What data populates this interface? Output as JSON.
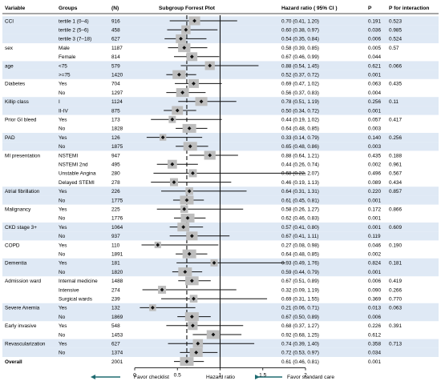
{
  "chart_data": {
    "type": "forest",
    "title": "Subgroup Forrest Plot",
    "columns": {
      "variable": "Variable",
      "groups": "Groups",
      "n": "(N)",
      "hr": "Hazard ratio ( 95% CI )",
      "p": "P",
      "p_interaction": "P for interaction"
    },
    "xlabel": "Hazard ratio",
    "xlim": [
      0,
      2
    ],
    "xticks": [
      "0",
      "0.5",
      "1",
      "1.5",
      "2"
    ],
    "tick_values": [
      0,
      0.5,
      1,
      1.5,
      2
    ],
    "reference_line": 1,
    "overall_line": 0.61,
    "favor_left": "Favor checklist",
    "favor_right": "Favor standard care",
    "rows": [
      {
        "variable": "CCI",
        "group": "tertile 1 (0–4)",
        "n": "916",
        "hr": 0.7,
        "lo": 0.41,
        "hi": 1.2,
        "hr_text": "0.70 (0.41, 1.20)",
        "p": "0.191",
        "p_int": "0.523",
        "band": true
      },
      {
        "variable": "",
        "group": "tertile 2 (5–6)",
        "n": "458",
        "hr": 0.6,
        "lo": 0.38,
        "hi": 0.97,
        "hr_text": "0.60 (0.38, 0.97)",
        "p": "0.036",
        "p_int": "0.985",
        "band": true
      },
      {
        "variable": "",
        "group": "tertile 3 (7–18)",
        "n": "627",
        "hr": 0.54,
        "lo": 0.35,
        "hi": 0.84,
        "hr_text": "0.54 (0.35, 0.84)",
        "p": "0.006",
        "p_int": "0.524",
        "band": true
      },
      {
        "variable": "sex",
        "group": "Male",
        "n": "1187",
        "hr": 0.58,
        "lo": 0.39,
        "hi": 0.85,
        "hr_text": "0.58 (0.39, 0.85)",
        "p": "0.005",
        "p_int": "0.57",
        "band": false
      },
      {
        "variable": "",
        "group": "Female",
        "n": "814",
        "hr": 0.67,
        "lo": 0.46,
        "hi": 0.99,
        "hr_text": "0.67 (0.46, 0.99)",
        "p": "0.044",
        "p_int": "",
        "band": false
      },
      {
        "variable": "age",
        "group": "<75",
        "n": "579",
        "hr": 0.88,
        "lo": 0.54,
        "hi": 1.45,
        "hr_text": "0.88 (0.54, 1.45)",
        "p": "0.621",
        "p_int": "0.066",
        "band": true
      },
      {
        "variable": "",
        "group": ">=75",
        "n": "1420",
        "hr": 0.52,
        "lo": 0.37,
        "hi": 0.72,
        "hr_text": "0.52 (0.37, 0.72)",
        "p": "0.001",
        "p_int": "",
        "band": true
      },
      {
        "variable": "Diabetes",
        "group": "Yes",
        "n": "704",
        "hr": 0.69,
        "lo": 0.47,
        "hi": 1.02,
        "hr_text": "0.69 (0.47, 1.02)",
        "p": "0.063",
        "p_int": "0.435",
        "band": false
      },
      {
        "variable": "",
        "group": "No",
        "n": "1297",
        "hr": 0.56,
        "lo": 0.37,
        "hi": 0.83,
        "hr_text": "0.56 (0.37, 0.83)",
        "p": "0.004",
        "p_int": "",
        "band": false
      },
      {
        "variable": "Killip class",
        "group": "I",
        "n": "1124",
        "hr": 0.78,
        "lo": 0.51,
        "hi": 1.19,
        "hr_text": "0.78 (0.51, 1.19)",
        "p": "0.256",
        "p_int": "0.11",
        "band": true
      },
      {
        "variable": "",
        "group": "II-IV",
        "n": "875",
        "hr": 0.5,
        "lo": 0.34,
        "hi": 0.72,
        "hr_text": "0.50 (0.34, 0.72)",
        "p": "0.001",
        "p_int": "",
        "band": true
      },
      {
        "variable": "Prior GI bleed",
        "group": "Yes",
        "n": "173",
        "hr": 0.44,
        "lo": 0.19,
        "hi": 1.02,
        "hr_text": "0.44 (0.19, 1.02)",
        "p": "0.057",
        "p_int": "0.417",
        "band": false
      },
      {
        "variable": "",
        "group": "No",
        "n": "1828",
        "hr": 0.64,
        "lo": 0.48,
        "hi": 0.85,
        "hr_text": "0.64 (0.48, 0.85)",
        "p": "0.003",
        "p_int": "",
        "band": false
      },
      {
        "variable": "PAD",
        "group": "Yes",
        "n": "126",
        "hr": 0.33,
        "lo": 0.14,
        "hi": 0.79,
        "hr_text": "0.33 (0.14, 0.79)",
        "p": "0.140",
        "p_int": "0.256",
        "band": true
      },
      {
        "variable": "",
        "group": "No",
        "n": "1875",
        "hr": 0.65,
        "lo": 0.48,
        "hi": 0.86,
        "hr_text": "0.65 (0.48, 0.86)",
        "p": "0.003",
        "p_int": "",
        "band": true
      },
      {
        "variable": "MI presentation",
        "group": "NSTEMI",
        "n": "947",
        "hr": 0.88,
        "lo": 0.64,
        "hi": 1.21,
        "hr_text": "0.88 (0.64, 1.21)",
        "p": "0.435",
        "p_int": "0.188",
        "band": false
      },
      {
        "variable": "",
        "group": "NSTEMI 2nd",
        "n": "495",
        "hr": 0.44,
        "lo": 0.26,
        "hi": 0.74,
        "hr_text": "0.44 (0.26, 0.74)",
        "p": "0.002",
        "p_int": "0.961",
        "band": false
      },
      {
        "variable": "",
        "group": "Unstable Angina",
        "n": "280",
        "hr": 0.68,
        "lo": 0.22,
        "hi": 2.07,
        "hr_text": "0.68 (0.22, 2.07)",
        "p": "0.496",
        "p_int": "0.567",
        "band": false
      },
      {
        "variable": "",
        "group": "Delayed STEMI",
        "n": "278",
        "hr": 0.46,
        "lo": 0.19,
        "hi": 1.13,
        "hr_text": "0.46 (0.19, 1.13)",
        "p": "0.089",
        "p_int": "0.434",
        "band": false
      },
      {
        "variable": "Atrial fibrillation",
        "group": "Yes",
        "n": "226",
        "hr": 0.64,
        "lo": 0.31,
        "hi": 1.31,
        "hr_text": "0.64 (0.31, 1.31)",
        "p": "0.220",
        "p_int": "0.857",
        "band": true
      },
      {
        "variable": "",
        "group": "No",
        "n": "1775",
        "hr": 0.61,
        "lo": 0.45,
        "hi": 0.81,
        "hr_text": "0.61 (0.45, 0.81)",
        "p": "0.001",
        "p_int": "",
        "band": true
      },
      {
        "variable": "Malignancy",
        "group": "Yes",
        "n": "225",
        "hr": 0.58,
        "lo": 0.26,
        "hi": 1.27,
        "hr_text": "0.58 (0.26, 1.27)",
        "p": "0.172",
        "p_int": "0.866",
        "band": false
      },
      {
        "variable": "",
        "group": "No",
        "n": "1776",
        "hr": 0.62,
        "lo": 0.46,
        "hi": 0.83,
        "hr_text": "0.62 (0.46, 0.83)",
        "p": "0.001",
        "p_int": "",
        "band": false
      },
      {
        "variable": "CKD stage 3+",
        "group": "Yes",
        "n": "1064",
        "hr": 0.57,
        "lo": 0.41,
        "hi": 0.8,
        "hr_text": "0.57 (0.41, 0.80)",
        "p": "0.001",
        "p_int": "0.609",
        "band": true
      },
      {
        "variable": "",
        "group": "No",
        "n": "937",
        "hr": 0.67,
        "lo": 0.41,
        "hi": 1.11,
        "hr_text": "0.67 (0.41, 1.11)",
        "p": "0.119",
        "p_int": "",
        "band": true
      },
      {
        "variable": "COPD",
        "group": "Yes",
        "n": "110",
        "hr": 0.27,
        "lo": 0.08,
        "hi": 0.98,
        "hr_text": "0.27 (0.08, 0.98)",
        "p": "0.046",
        "p_int": "0.190",
        "band": false
      },
      {
        "variable": "",
        "group": "No",
        "n": "1891",
        "hr": 0.64,
        "lo": 0.48,
        "hi": 0.85,
        "hr_text": "0.64 (0.48, 0.85)",
        "p": "0.002",
        "p_int": "",
        "band": false
      },
      {
        "variable": "Dementia",
        "group": "Yes",
        "n": "181",
        "hr": 0.93,
        "lo": 0.49,
        "hi": 1.76,
        "hr_text": "0.93 (0.49, 1.76)",
        "p": "0.824",
        "p_int": "0.181",
        "band": true
      },
      {
        "variable": "",
        "group": "No",
        "n": "1820",
        "hr": 0.59,
        "lo": 0.44,
        "hi": 0.79,
        "hr_text": "0.59 (0.44, 0.79)",
        "p": "0.001",
        "p_int": "",
        "band": true
      },
      {
        "variable": "Admission ward",
        "group": "Internal medicine",
        "n": "1488",
        "hr": 0.67,
        "lo": 0.51,
        "hi": 0.89,
        "hr_text": "0.67 (0.51, 0.89)",
        "p": "0.006",
        "p_int": "0.419",
        "band": false
      },
      {
        "variable": "",
        "group": "Intensive",
        "n": "274",
        "hr": 0.32,
        "lo": 0.09,
        "hi": 1.19,
        "hr_text": "0.32 (0.09, 1.19)",
        "p": "0.090",
        "p_int": "0.266",
        "band": false
      },
      {
        "variable": "",
        "group": "Surgical wards",
        "n": "239",
        "hr": 0.69,
        "lo": 0.31,
        "hi": 1.55,
        "hr_text": "0.69 (0.31, 1.55)",
        "p": "0.369",
        "p_int": "0.770",
        "band": false
      },
      {
        "variable": "Severe Anemia",
        "group": "Yes",
        "n": "132",
        "hr": 0.21,
        "lo": 0.06,
        "hi": 0.71,
        "hr_text": "0.21 (0.06, 0.71)",
        "p": "0.013",
        "p_int": "0.063",
        "band": true
      },
      {
        "variable": "",
        "group": "No",
        "n": "1869",
        "hr": 0.67,
        "lo": 0.5,
        "hi": 0.89,
        "hr_text": "0.67 (0.50, 0.89)",
        "p": "0.006",
        "p_int": "",
        "band": true
      },
      {
        "variable": "Early invasive",
        "group": "Yes",
        "n": "548",
        "hr": 0.68,
        "lo": 0.37,
        "hi": 1.27,
        "hr_text": "0.68 (0.37, 1.27)",
        "p": "0.226",
        "p_int": "0.391",
        "band": false
      },
      {
        "variable": "",
        "group": "No",
        "n": "1453",
        "hr": 0.92,
        "lo": 0.68,
        "hi": 1.25,
        "hr_text": "0.92 (0.68, 1.25)",
        "p": "0.612",
        "p_int": "",
        "band": false
      },
      {
        "variable": "Revascularization",
        "group": "Yes",
        "n": "627",
        "hr": 0.74,
        "lo": 0.39,
        "hi": 1.4,
        "hr_text": "0.74 (0.39, 1.40)",
        "p": "0.358",
        "p_int": "0.713",
        "band": true
      },
      {
        "variable": "",
        "group": "No",
        "n": "1374",
        "hr": 0.72,
        "lo": 0.53,
        "hi": 0.97,
        "hr_text": "0.72 (0.53, 0.97)",
        "p": "0.034",
        "p_int": "",
        "band": true
      },
      {
        "variable": "Overall",
        "group": "",
        "n": "2001",
        "hr": 0.61,
        "lo": 0.46,
        "hi": 0.81,
        "hr_text": "0.61 (0.46, 0.81)",
        "p": "0.001",
        "p_int": "",
        "band": false,
        "bold": true
      }
    ],
    "colors": {
      "band": "#dfe9f5",
      "box": "#bdbdbd",
      "marker": "#111111",
      "line": "#111111",
      "arrow": "#1e6b70",
      "grid": "#111111"
    },
    "grid": false,
    "legend": "none"
  }
}
